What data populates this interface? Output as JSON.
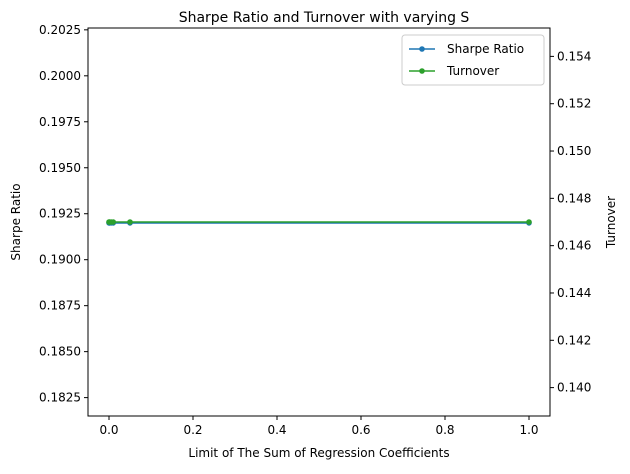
{
  "chart_data": {
    "type": "line",
    "title": "Sharpe Ratio and Turnover with varying S",
    "xlabel": "Limit of The Sum of Regression Coefficients",
    "ylabel": "Sharpe Ratio",
    "y2label": "Turnover",
    "xlim": [
      -0.05,
      1.05
    ],
    "ylim": [
      0.1815,
      0.2026
    ],
    "y2lim": [
      0.1388,
      0.1552
    ],
    "xticks": [
      0.0,
      0.2,
      0.4,
      0.6,
      0.8,
      1.0
    ],
    "xtick_labels": [
      "0.0",
      "0.2",
      "0.4",
      "0.6",
      "0.8",
      "1.0"
    ],
    "yticks": [
      0.1825,
      0.185,
      0.1875,
      0.19,
      0.1925,
      0.195,
      0.1975,
      0.2,
      0.2025
    ],
    "ytick_labels": [
      "0.1825",
      "0.1850",
      "0.1875",
      "0.1900",
      "0.1925",
      "0.1950",
      "0.1975",
      "0.2000",
      "0.2025"
    ],
    "y2ticks": [
      0.14,
      0.142,
      0.144,
      0.146,
      0.148,
      0.15,
      0.152,
      0.154
    ],
    "y2tick_labels": [
      "0.140",
      "0.142",
      "0.144",
      "0.146",
      "0.148",
      "0.150",
      "0.152",
      "0.154"
    ],
    "grid": false,
    "legend_position": "top-right",
    "x": [
      0.0,
      0.001,
      0.005,
      0.01,
      0.05,
      1.0
    ],
    "series": [
      {
        "name": "Sharpe Ratio",
        "axis": "left",
        "color": "#1f77b4",
        "values": [
          0.192,
          0.192,
          0.192,
          0.192,
          0.192,
          0.192
        ]
      },
      {
        "name": "Turnover",
        "axis": "right",
        "color": "#2ca02c",
        "values": [
          0.147,
          0.147,
          0.147,
          0.147,
          0.147,
          0.147
        ]
      }
    ]
  }
}
